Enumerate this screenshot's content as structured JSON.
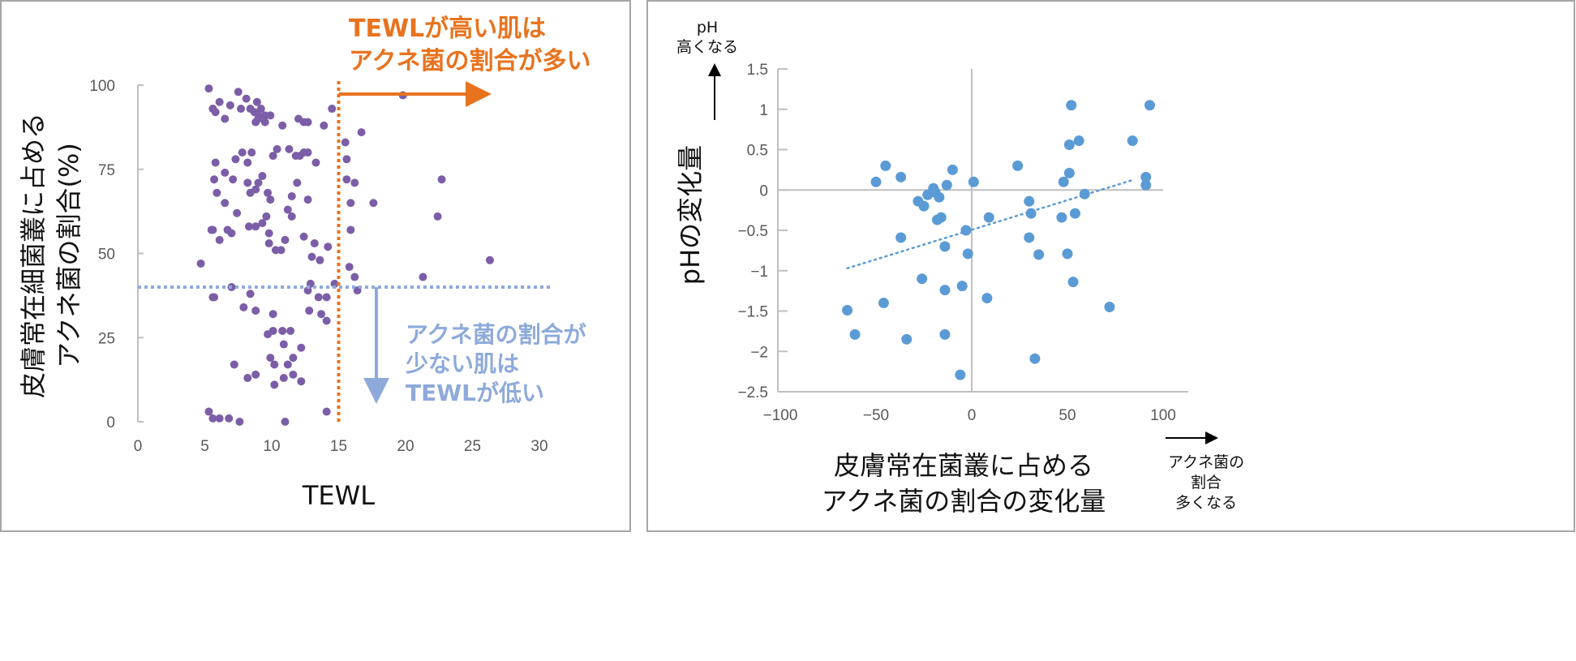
{
  "chart_data": [
    {
      "type": "scatter",
      "xlabel": "TEWL",
      "ylabel_lines": [
        "皮膚常在細菌叢に占める",
        "アクネ菌の割合(%)"
      ],
      "xlim": [
        0,
        30
      ],
      "ylim": [
        0,
        100
      ],
      "xticks": [
        0,
        5,
        10,
        15,
        20,
        25,
        30
      ],
      "yticks": [
        0,
        25,
        50,
        75,
        100
      ],
      "grid": false,
      "point_color": "#7b5ea7",
      "annotations": {
        "high": {
          "lines": [
            "TEWLが高い肌は",
            "アクネ菌の割合が多い"
          ],
          "color": "#e8731e",
          "threshold_x": 15
        },
        "low": {
          "lines": [
            "アクネ菌の割合が",
            "少ない肌は",
            "TEWLが低い"
          ],
          "color": "#8eaadb",
          "threshold_y": 40
        }
      },
      "points": [
        [
          5.3,
          99
        ],
        [
          5.6,
          93
        ],
        [
          6.1,
          95
        ],
        [
          6.9,
          94
        ],
        [
          7.5,
          98
        ],
        [
          7.7,
          93
        ],
        [
          8.1,
          96
        ],
        [
          8.4,
          93
        ],
        [
          8.9,
          95
        ],
        [
          9.2,
          93
        ],
        [
          8.7,
          92
        ],
        [
          9.0,
          91
        ],
        [
          9.0,
          90
        ],
        [
          5.6,
          93
        ],
        [
          5.8,
          92
        ],
        [
          6.5,
          90
        ],
        [
          8.8,
          89
        ],
        [
          9.5,
          91
        ],
        [
          9.5,
          89
        ],
        [
          9.9,
          91
        ],
        [
          8.5,
          80
        ],
        [
          10.1,
          79
        ],
        [
          10.4,
          81
        ],
        [
          10.8,
          88
        ],
        [
          11.3,
          81
        ],
        [
          12.0,
          90
        ],
        [
          12.4,
          89
        ],
        [
          12.7,
          89
        ],
        [
          11.8,
          79
        ],
        [
          12.1,
          79
        ],
        [
          13.3,
          77
        ],
        [
          7.8,
          80
        ],
        [
          8.2,
          77
        ],
        [
          5.8,
          77
        ],
        [
          5.7,
          72
        ],
        [
          6.5,
          74
        ],
        [
          7.1,
          72
        ],
        [
          7.3,
          78
        ],
        [
          8.2,
          71
        ],
        [
          8.4,
          68
        ],
        [
          8.8,
          69
        ],
        [
          9.0,
          71
        ],
        [
          9.3,
          73
        ],
        [
          9.6,
          61
        ],
        [
          9.7,
          68
        ],
        [
          9.9,
          66
        ],
        [
          11.5,
          67
        ],
        [
          11.2,
          63
        ],
        [
          5.9,
          68
        ],
        [
          6.5,
          65
        ],
        [
          7.4,
          62
        ],
        [
          5.5,
          57
        ],
        [
          6.7,
          57
        ],
        [
          7.0,
          56
        ],
        [
          8.3,
          58
        ],
        [
          8.8,
          58
        ],
        [
          9.3,
          59
        ],
        [
          9.8,
          56
        ],
        [
          9.8,
          53
        ],
        [
          10.3,
          51
        ],
        [
          10.7,
          51
        ],
        [
          11.0,
          54
        ],
        [
          6.1,
          54
        ],
        [
          5.6,
          57
        ],
        [
          4.7,
          47
        ],
        [
          5.7,
          37
        ],
        [
          7.0,
          40
        ],
        [
          7.9,
          34
        ],
        [
          8.4,
          38
        ],
        [
          8.8,
          33
        ],
        [
          10.1,
          32
        ],
        [
          7.2,
          17
        ],
        [
          8.2,
          13
        ],
        [
          8.8,
          14
        ],
        [
          9.7,
          26
        ],
        [
          10.1,
          27
        ],
        [
          10.8,
          27
        ],
        [
          9.9,
          19
        ],
        [
          10.2,
          17
        ],
        [
          11.2,
          17
        ],
        [
          11.6,
          19
        ],
        [
          11.6,
          14
        ],
        [
          12.2,
          12
        ],
        [
          10.9,
          13
        ],
        [
          10.2,
          11
        ],
        [
          12.2,
          22
        ],
        [
          12.7,
          39
        ],
        [
          12.9,
          41
        ],
        [
          10.9,
          23
        ],
        [
          5.3,
          3
        ],
        [
          5.6,
          1
        ],
        [
          6.1,
          1
        ],
        [
          6.8,
          1
        ],
        [
          7.6,
          0
        ],
        [
          11.0,
          0
        ],
        [
          14.1,
          3
        ],
        [
          13.5,
          37
        ],
        [
          5.6,
          37
        ],
        [
          12.8,
          33
        ],
        [
          13.0,
          49
        ],
        [
          13.2,
          53
        ],
        [
          11.5,
          61
        ],
        [
          11.9,
          71
        ],
        [
          12.4,
          80
        ],
        [
          12.7,
          80
        ],
        [
          13.9,
          88
        ],
        [
          14.5,
          93
        ],
        [
          15.5,
          83
        ],
        [
          15.6,
          78
        ],
        [
          15.6,
          72
        ],
        [
          15.9,
          65
        ],
        [
          16.2,
          71
        ],
        [
          15.9,
          57
        ],
        [
          15.8,
          46
        ],
        [
          16.2,
          43
        ],
        [
          16.4,
          39
        ],
        [
          16.7,
          86
        ],
        [
          17.6,
          65
        ],
        [
          19.8,
          97
        ],
        [
          22.4,
          61
        ],
        [
          22.7,
          72
        ],
        [
          21.3,
          43
        ],
        [
          26.3,
          48
        ],
        [
          14.1,
          37
        ],
        [
          14.1,
          30
        ],
        [
          13.7,
          32
        ],
        [
          11.4,
          27
        ],
        [
          14.7,
          41
        ],
        [
          14.2,
          52
        ],
        [
          13.6,
          48
        ],
        [
          12.7,
          66
        ],
        [
          12.4,
          55
        ]
      ]
    },
    {
      "type": "scatter",
      "xlabel_lines": [
        "皮膚常在菌叢に占める",
        "アクネ菌の割合の変化量"
      ],
      "ylabel": "pHの変化量",
      "y_direction_note": [
        "pH",
        "高くなる"
      ],
      "x_direction_note": [
        "アクネ菌の",
        "割合",
        "多くなる"
      ],
      "xlim": [
        -100,
        100
      ],
      "ylim": [
        -2.5,
        1.5
      ],
      "xticks": [
        "−100",
        "−50",
        "0",
        "50",
        "100"
      ],
      "xtick_values": [
        -100,
        -50,
        0,
        50,
        100
      ],
      "yticks": [
        "1.5",
        "1",
        "0.5",
        "0",
        "−0.5",
        "−1",
        "−1.5",
        "−2",
        "−2.5"
      ],
      "ytick_values": [
        1.5,
        1,
        0.5,
        0,
        -0.5,
        -1,
        -1.5,
        -2,
        -2.5
      ],
      "grid": false,
      "point_color": "#5b9bd5",
      "trendline": {
        "style": "dotted",
        "from": [
          -65,
          -0.97
        ],
        "to": [
          85,
          0.13
        ]
      },
      "points": [
        [
          -65,
          -1.49
        ],
        [
          -61,
          -1.79
        ],
        [
          -50,
          0.1
        ],
        [
          -45,
          0.3
        ],
        [
          -37,
          0.16
        ],
        [
          -46,
          -1.4
        ],
        [
          -37,
          -0.59
        ],
        [
          -34,
          -1.85
        ],
        [
          -28,
          -0.14
        ],
        [
          -26,
          -1.1
        ],
        [
          -25,
          -0.2
        ],
        [
          -23,
          -0.06
        ],
        [
          -20,
          0.02
        ],
        [
          -19,
          -0.03
        ],
        [
          -17,
          -0.09
        ],
        [
          -18,
          -0.37
        ],
        [
          -16,
          -0.34
        ],
        [
          -13,
          0.06
        ],
        [
          -14,
          -0.7
        ],
        [
          -14,
          -1.24
        ],
        [
          -14,
          -1.79
        ],
        [
          -10,
          0.25
        ],
        [
          -6,
          -2.29
        ],
        [
          -5,
          -1.19
        ],
        [
          -3,
          -0.5
        ],
        [
          -2,
          -0.79
        ],
        [
          1,
          0.1
        ],
        [
          8,
          -1.34
        ],
        [
          9,
          -0.34
        ],
        [
          24,
          0.3
        ],
        [
          30,
          -0.14
        ],
        [
          30,
          -0.59
        ],
        [
          31,
          -0.29
        ],
        [
          33,
          -2.09
        ],
        [
          50,
          -0.79
        ],
        [
          51,
          0.56
        ],
        [
          53,
          -1.14
        ],
        [
          35,
          -0.8
        ],
        [
          47,
          -0.34
        ],
        [
          48,
          0.1
        ],
        [
          51,
          0.21
        ],
        [
          52,
          1.05
        ],
        [
          56,
          0.61
        ],
        [
          54,
          -0.29
        ],
        [
          59,
          -0.05
        ],
        [
          72,
          -1.45
        ],
        [
          84,
          0.61
        ],
        [
          91,
          0.16
        ],
        [
          91,
          0.06
        ],
        [
          93,
          1.05
        ]
      ]
    }
  ]
}
